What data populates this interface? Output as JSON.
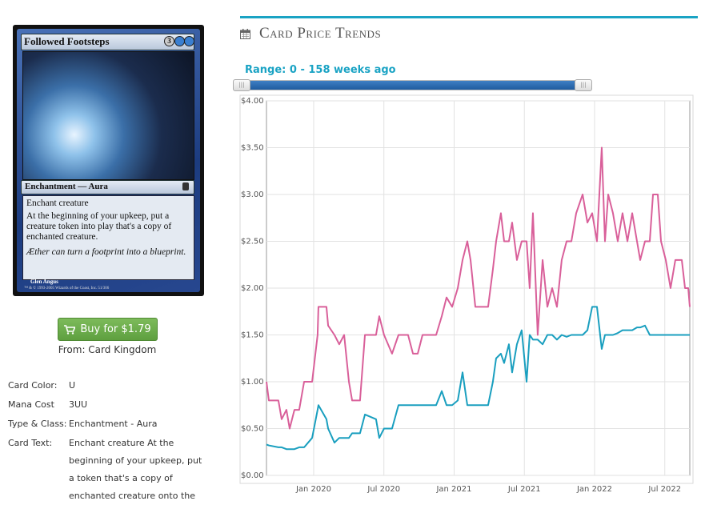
{
  "card": {
    "name": "Followed Footsteps",
    "mana_generic": "3",
    "type_line": "Enchantment — Aura",
    "rules_text": [
      "Enchant creature",
      "At the beginning of your upkeep, put a creature token into play that's a copy of enchanted creature."
    ],
    "flavor_text": "Æther can turn a footprint into a blueprint.",
    "artist": "Glen Angus",
    "copyright": "™ & © 1993-2005 Wizards of the Coast, Inc. 51/306"
  },
  "buy_button": "Buy for $1.79",
  "vendor": "From: Card Kingdom",
  "details": [
    {
      "label": "Card Color:",
      "value": "U"
    },
    {
      "label": "Mana Cost",
      "value": "3UU"
    },
    {
      "label": "Type & Class:",
      "value": "Enchantment - Aura"
    },
    {
      "label": "Card Text:",
      "value": "Enchant creature At the beginning of your upkeep, put a token that's a copy of enchanted creature onto the"
    }
  ],
  "section_title": "Card Price Trends",
  "range_label": "Range: 0 - 158 weeks ago",
  "chart_data": {
    "type": "line",
    "x": [
      2019.664,
      2019.681,
      2019.749,
      2019.772,
      2019.806,
      2019.829,
      2019.863,
      2019.897,
      2019.932,
      2019.989,
      2020.028,
      2020.034,
      2020.091,
      2020.103,
      2020.148,
      2020.182,
      2020.217,
      2020.251,
      2020.274,
      2020.33,
      2020.365,
      2020.444,
      2020.467,
      2020.501,
      2020.558,
      2020.604,
      2020.672,
      2020.707,
      2020.741,
      2020.775,
      2020.872,
      2020.912,
      2020.946,
      2020.986,
      2021.026,
      2021.06,
      2021.094,
      2021.117,
      2021.151,
      2021.242,
      2021.276,
      2021.299,
      2021.333,
      2021.356,
      2021.39,
      2021.413,
      2021.447,
      2021.481,
      2021.516,
      2021.538,
      2021.561,
      2021.595,
      2021.63,
      2021.664,
      2021.698,
      2021.732,
      2021.766,
      2021.801,
      2021.835,
      2021.869,
      2021.915,
      2021.949,
      2021.983,
      2022.017,
      2022.051,
      2022.074,
      2022.097,
      2022.131,
      2022.165,
      2022.199,
      2022.234,
      2022.268,
      2022.302,
      2022.325,
      2022.359,
      2022.393,
      2022.416,
      2022.45,
      2022.473,
      2022.507,
      2022.541,
      2022.575,
      2022.621,
      2022.644,
      2022.667,
      2022.678
    ],
    "series": [
      {
        "color": "#d9609a",
        "values": [
          1.0,
          0.8,
          0.8,
          0.6,
          0.7,
          0.5,
          0.7,
          0.7,
          1.0,
          1.0,
          1.5,
          1.8,
          1.8,
          1.6,
          1.5,
          1.4,
          1.5,
          1.0,
          0.8,
          0.8,
          1.5,
          1.5,
          1.7,
          1.5,
          1.3,
          1.5,
          1.5,
          1.3,
          1.3,
          1.5,
          1.5,
          1.7,
          1.9,
          1.8,
          2.0,
          2.3,
          2.5,
          2.3,
          1.8,
          1.8,
          2.2,
          2.5,
          2.8,
          2.5,
          2.5,
          2.7,
          2.3,
          2.5,
          2.5,
          2.0,
          2.8,
          1.5,
          2.3,
          1.8,
          2.0,
          1.8,
          2.3,
          2.5,
          2.5,
          2.8,
          3.0,
          2.7,
          2.8,
          2.5,
          3.5,
          2.5,
          3.0,
          2.8,
          2.5,
          2.8,
          2.5,
          2.8,
          2.5,
          2.3,
          2.5,
          2.5,
          3.0,
          3.0,
          2.5,
          2.3,
          2.0,
          2.3,
          2.3,
          2.0,
          2.0,
          1.8
        ]
      },
      {
        "color": "#1a9fbf",
        "values": [
          0.33,
          0.32,
          0.3,
          0.3,
          0.28,
          0.28,
          0.28,
          0.3,
          0.3,
          0.4,
          0.7,
          0.75,
          0.6,
          0.5,
          0.35,
          0.4,
          0.4,
          0.4,
          0.45,
          0.45,
          0.65,
          0.6,
          0.4,
          0.5,
          0.5,
          0.75,
          0.75,
          0.75,
          0.75,
          0.75,
          0.75,
          0.9,
          0.75,
          0.75,
          0.8,
          1.1,
          0.75,
          0.75,
          0.75,
          0.75,
          1.0,
          1.25,
          1.3,
          1.2,
          1.4,
          1.1,
          1.4,
          1.55,
          1.0,
          1.5,
          1.45,
          1.45,
          1.4,
          1.5,
          1.5,
          1.45,
          1.5,
          1.48,
          1.5,
          1.5,
          1.5,
          1.55,
          1.8,
          1.8,
          1.35,
          1.5,
          1.5,
          1.5,
          1.52,
          1.55,
          1.55,
          1.55,
          1.58,
          1.58,
          1.6,
          1.5,
          1.5,
          1.5,
          1.5,
          1.5,
          1.5,
          1.5,
          1.5,
          1.5,
          1.5,
          1.5
        ]
      }
    ],
    "xlim": [
      2019.664,
      2022.678
    ],
    "xticks": [
      {
        "value": 2020,
        "label": "Jan 2020"
      },
      {
        "value": 2020.5,
        "label": "Jul 2020"
      },
      {
        "value": 2021,
        "label": "Jan 2021"
      },
      {
        "value": 2021.5,
        "label": "Jul 2021"
      },
      {
        "value": 2022,
        "label": "Jan 2022"
      },
      {
        "value": 2022.5,
        "label": "Jul 2022"
      }
    ],
    "ylim": [
      0,
      4
    ],
    "yticks": [
      {
        "value": 0,
        "label": "$0.00"
      },
      {
        "value": 0.5,
        "label": "$0.50"
      },
      {
        "value": 1,
        "label": "$1.00"
      },
      {
        "value": 1.5,
        "label": "$1.50"
      },
      {
        "value": 2,
        "label": "$2.00"
      },
      {
        "value": 2.5,
        "label": "$2.50"
      },
      {
        "value": 3,
        "label": "$3.00"
      },
      {
        "value": 3.5,
        "label": "$3.50"
      },
      {
        "value": 4,
        "label": "$4.00"
      }
    ],
    "grid": true
  }
}
